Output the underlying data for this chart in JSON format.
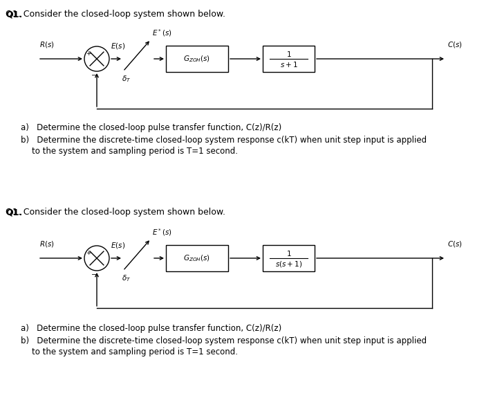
{
  "bg_color": "#ffffff",
  "text_color": "#000000",
  "q1_title": "Q1. Consider the closed-loop system shown below.",
  "q2_title": "Q1. Consider the closed-loop system shown below.",
  "diagram1_den": "s+1",
  "diagram2_den": "s(s+1)",
  "q_text_a": "a)   Determine the closed-loop pulse transfer function, C(z)/R(z)",
  "q_text_b": "b)   Determine the discrete-time closed-loop system response c(kT) when unit step input is applied",
  "q_text_b2": "      to the system and sampling period is T=1 second.",
  "lw": 1.0,
  "font_size_label": 7.5,
  "font_size_body": 8.5,
  "font_size_title": 9.0
}
